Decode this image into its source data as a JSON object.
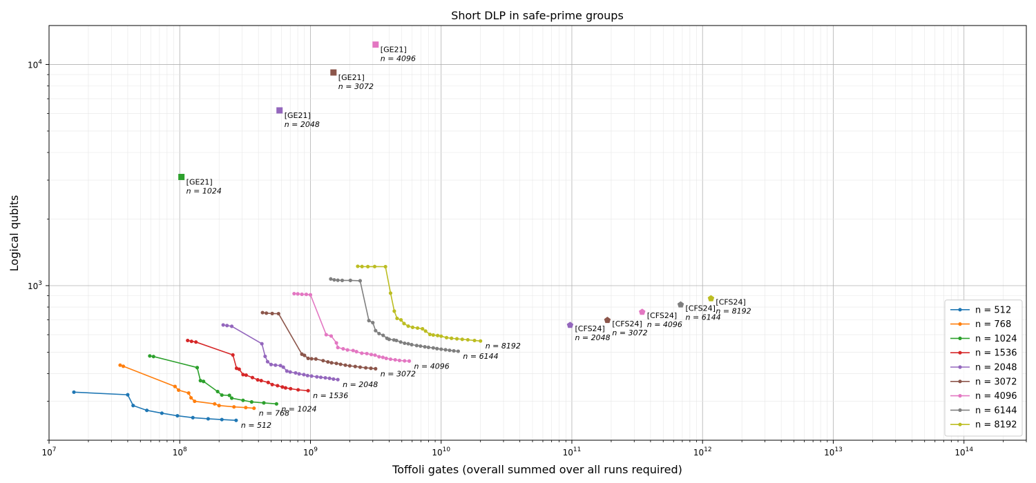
{
  "chart_data": {
    "type": "scatter",
    "title": "Short DLP in safe-prime groups",
    "xlabel": "Toffoli gates (overall summed over all runs required)",
    "ylabel": "Logical qubits",
    "xscale": "log",
    "yscale": "log",
    "xlim": [
      10000000.0,
      300000000000000.0
    ],
    "ylim": [
      200,
      15000
    ],
    "x_tick_labels": [
      "10^7",
      "10^8",
      "10^9",
      "10^10",
      "10^11",
      "10^12",
      "10^13",
      "10^14"
    ],
    "y_tick_labels": [
      "10^3",
      "10^4"
    ],
    "grid": true,
    "legend_position": "lower right",
    "series": [
      {
        "name": "n = 512",
        "end_label": "n = 512",
        "color": "#1f77b4",
        "x": [
          15500000.0,
          40000000.0,
          44000000.0,
          56000000.0,
          73000000.0,
          96000000.0,
          126000000.0,
          165000000.0,
          210000000.0,
          270000000.0
        ],
        "y": [
          330,
          321,
          287,
          273,
          265,
          258,
          253,
          250,
          248,
          246
        ]
      },
      {
        "name": "n = 768",
        "end_label": "n = 768",
        "color": "#ff7f0e",
        "x": [
          35000000.0,
          37000000.0,
          92000000.0,
          98000000.0,
          117000000.0,
          122000000.0,
          130000000.0,
          185000000.0,
          200000000.0,
          260000000.0,
          320000000.0,
          370000000.0
        ],
        "y": [
          437,
          432,
          350,
          337,
          327,
          311,
          300,
          292,
          287,
          283,
          281,
          279
        ]
      },
      {
        "name": "n = 1024",
        "end_label": "n = 1024",
        "color": "#2ca02c",
        "x": [
          59000000.0,
          63000000.0,
          136000000.0,
          144000000.0,
          152000000.0,
          195000000.0,
          210000000.0,
          240000000.0,
          250000000.0,
          305000000.0,
          355000000.0,
          440000000.0,
          550000000.0
        ],
        "y": [
          481,
          478,
          426,
          372,
          369,
          332,
          320,
          319,
          310,
          303,
          298,
          295,
          292
        ]
      },
      {
        "name": "n = 1536",
        "end_label": "n = 1536",
        "color": "#d62728",
        "x": [
          115000000.0,
          123000000.0,
          133000000.0,
          255000000.0,
          272000000.0,
          285000000.0,
          305000000.0,
          322000000.0,
          360000000.0,
          395000000.0,
          420000000.0,
          475000000.0,
          510000000.0,
          560000000.0,
          610000000.0,
          645000000.0,
          705000000.0,
          805000000.0,
          960000000.0
        ],
        "y": [
          565,
          560,
          556,
          486,
          423,
          419,
          396,
          394,
          384,
          375,
          372,
          365,
          357,
          353,
          348,
          345,
          342,
          338,
          335
        ]
      },
      {
        "name": "n = 2048",
        "end_label": "n = 2048",
        "color": "#9467bd",
        "x": [
          215000000.0,
          230000000.0,
          250000000.0,
          425000000.0,
          450000000.0,
          470000000.0,
          500000000.0,
          540000000.0,
          590000000.0,
          620000000.0,
          660000000.0,
          700000000.0,
          770000000.0,
          820000000.0,
          890000000.0,
          950000000.0,
          1020000000.0,
          1120000000.0,
          1200000000.0,
          1300000000.0,
          1400000000.0,
          1500000000.0,
          1620000000.0
        ],
        "y": [
          664,
          660,
          655,
          546,
          479,
          453,
          440,
          437,
          435,
          428,
          411,
          407,
          403,
          399,
          396,
          392,
          390,
          387,
          385,
          383,
          381,
          378,
          376
        ]
      },
      {
        "name": "n = 3072",
        "end_label": "n = 3072",
        "color": "#8c564b",
        "x": [
          430000000.0,
          460000000.0,
          510000000.0,
          570000000.0,
          860000000.0,
          900000000.0,
          960000000.0,
          1020000000.0,
          1100000000.0,
          1250000000.0,
          1360000000.0,
          1450000000.0,
          1580000000.0,
          1700000000.0,
          1850000000.0,
          2000000000.0,
          2200000000.0,
          2400000000.0,
          2650000000.0,
          2900000000.0,
          3150000000.0
        ],
        "y": [
          755,
          751,
          748,
          747,
          490,
          484,
          469,
          467,
          466,
          458,
          452,
          448,
          445,
          441,
          437,
          434,
          431,
          428,
          425,
          423,
          421
        ]
      },
      {
        "name": "n = 4096",
        "end_label": "n = 4096",
        "color": "#e377c2",
        "x": [
          750000000.0,
          800000000.0,
          860000000.0,
          930000000.0,
          1000000000.0,
          1320000000.0,
          1440000000.0,
          1580000000.0,
          1620000000.0,
          1780000000.0,
          1920000000.0,
          2120000000.0,
          2250000000.0,
          2470000000.0,
          2700000000.0,
          2920000000.0,
          3120000000.0,
          3350000000.0,
          3580000000.0,
          3800000000.0,
          4100000000.0,
          4450000000.0,
          4800000000.0,
          5250000000.0,
          5700000000.0
        ],
        "y": [
          920,
          918,
          914,
          913,
          909,
          600,
          592,
          551,
          525,
          518,
          512,
          509,
          503,
          495,
          493,
          488,
          485,
          477,
          474,
          469,
          465,
          462,
          459,
          457,
          456
        ]
      },
      {
        "name": "n = 6144",
        "end_label": "n = 6144",
        "color": "#7f7f7f",
        "x": [
          1430000000.0,
          1520000000.0,
          1620000000.0,
          1750000000.0,
          2020000000.0,
          2400000000.0,
          2800000000.0,
          3000000000.0,
          3150000000.0,
          3350000000.0,
          3600000000.0,
          3850000000.0,
          4000000000.0,
          4350000000.0,
          4550000000.0,
          4900000000.0,
          5250000000.0,
          5600000000.0,
          5950000000.0,
          6500000000.0,
          6950000000.0,
          7500000000.0,
          8000000000.0,
          8700000000.0,
          9300000000.0,
          10000000000.0,
          10800000000.0,
          11600000000.0,
          12500000000.0,
          13500000000.0
        ],
        "y": [
          1072,
          1062,
          1058,
          1056,
          1056,
          1052,
          695,
          680,
          626,
          607,
          596,
          578,
          572,
          568,
          565,
          556,
          549,
          546,
          541,
          536,
          533,
          529,
          526,
          523,
          519,
          516,
          513,
          510,
          507,
          505
        ]
      },
      {
        "name": "n = 8192",
        "end_label": "n = 8192",
        "color": "#bcbd22",
        "x": [
          2300000000.0,
          2480000000.0,
          2750000000.0,
          3100000000.0,
          3750000000.0,
          4100000000.0,
          4380000000.0,
          4600000000.0,
          4930000000.0,
          5200000000.0,
          5600000000.0,
          6050000000.0,
          6600000000.0,
          7200000000.0,
          7600000000.0,
          8200000000.0,
          8700000000.0,
          9400000000.0,
          10000000000.0,
          11000000000.0,
          12000000000.0,
          13200000000.0,
          14500000000.0,
          16000000000.0,
          18000000000.0,
          20000000000.0
        ],
        "y": [
          1223,
          1220,
          1219,
          1220,
          1218,
          925,
          767,
          711,
          700,
          674,
          656,
          648,
          643,
          638,
          623,
          602,
          598,
          595,
          591,
          582,
          578,
          575,
          572,
          569,
          565,
          562
        ]
      }
    ],
    "annotations": {
      "GE21": [
        {
          "label": "[GE21]",
          "n_label": "n = 1024",
          "x": 103000000.0,
          "y": 3100,
          "color": "#2ca02c"
        },
        {
          "label": "[GE21]",
          "n_label": "n = 2048",
          "x": 580000000.0,
          "y": 6200,
          "color": "#9467bd"
        },
        {
          "label": "[GE21]",
          "n_label": "n = 3072",
          "x": 1500000000.0,
          "y": 9200,
          "color": "#8c564b"
        },
        {
          "label": "[GE21]",
          "n_label": "n = 4096",
          "x": 3150000000.0,
          "y": 12300,
          "color": "#e377c2"
        }
      ],
      "CFS24": [
        {
          "label": "[CFS24]",
          "n_label": "n = 2048",
          "x": 97000000000.0,
          "y": 663,
          "color": "#9467bd"
        },
        {
          "label": "[CFS24]",
          "n_label": "n = 3072",
          "x": 187000000000.0,
          "y": 698,
          "color": "#8c564b"
        },
        {
          "label": "[CFS24]",
          "n_label": "n = 4096",
          "x": 345000000000.0,
          "y": 760,
          "color": "#e377c2"
        },
        {
          "label": "[CFS24]",
          "n_label": "n = 6144",
          "x": 680000000000.0,
          "y": 820,
          "color": "#7f7f7f"
        },
        {
          "label": "[CFS24]",
          "n_label": "n = 8192",
          "x": 1160000000000.0,
          "y": 875,
          "color": "#bcbd22"
        }
      ]
    }
  }
}
